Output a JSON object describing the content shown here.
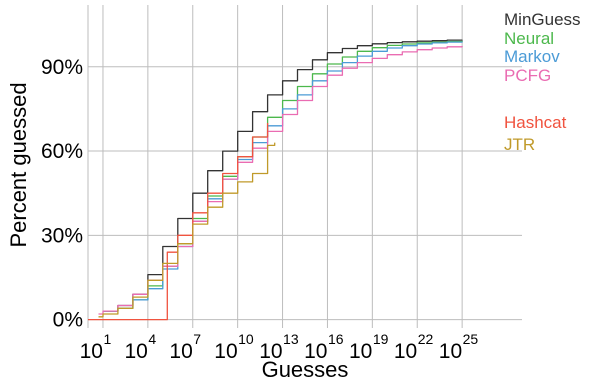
{
  "chart_data": {
    "type": "line",
    "title": "",
    "xlabel": "Guesses",
    "ylabel": "Percent guessed",
    "x_scale": "log10",
    "xlim": [
      1,
      1e+29
    ],
    "ylim": [
      -3,
      112
    ],
    "grid": true,
    "legend_position": "right",
    "x_ticks": [
      {
        "value": 10,
        "base": "10",
        "exp": "1"
      },
      {
        "value": 10000.0,
        "base": "10",
        "exp": "4"
      },
      {
        "value": 10000000.0,
        "base": "10",
        "exp": "7"
      },
      {
        "value": 10000000000.0,
        "base": "10",
        "exp": "10"
      },
      {
        "value": 10000000000000.0,
        "base": "10",
        "exp": "13"
      },
      {
        "value": 1e+16,
        "base": "10",
        "exp": "16"
      },
      {
        "value": 1e+19,
        "base": "10",
        "exp": "19"
      },
      {
        "value": 1e+22,
        "base": "10",
        "exp": "22"
      },
      {
        "value": 1e+25,
        "base": "10",
        "exp": "25"
      }
    ],
    "y_ticks": [
      {
        "value": 0,
        "label": "0%"
      },
      {
        "value": 30,
        "label": "30%"
      },
      {
        "value": 60,
        "label": "60%"
      },
      {
        "value": 90,
        "label": "90%"
      }
    ],
    "series": [
      {
        "name": "MinGuess",
        "color": "#333333",
        "x": [
          10.0,
          100.0,
          1000.0,
          10000.0,
          100000.0,
          1000000.0,
          10000000.0,
          100000000.0,
          1000000000.0,
          10000000000.0,
          100000000000.0,
          1000000000000.0,
          10000000000000.0,
          100000000000000.0,
          1000000000000000.0,
          1e+16,
          1e+17,
          1e+18,
          1e+19,
          1e+20,
          1e+21,
          1e+22,
          1e+23,
          1e+24,
          1e+25
        ],
        "y": [
          3,
          5,
          9,
          16,
          26,
          36,
          45,
          53,
          60,
          67,
          74,
          80,
          85,
          89,
          92.5,
          95,
          96.5,
          97.5,
          98.2,
          98.6,
          98.9,
          99.1,
          99.3,
          99.5,
          99.6
        ]
      },
      {
        "name": "Neural",
        "color": "#4cb84c",
        "x": [
          10.0,
          100.0,
          1000.0,
          10000.0,
          100000.0,
          1000000.0,
          10000000.0,
          100000000.0,
          1000000000.0,
          10000000000.0,
          100000000000.0,
          1000000000000.0,
          10000000000000.0,
          100000000000000.0,
          1000000000000000.0,
          1e+16,
          1e+17,
          1e+18,
          1e+19,
          1e+20,
          1e+21,
          1e+22,
          1e+23,
          1e+24,
          1e+25
        ],
        "y": [
          3,
          4,
          7,
          12,
          19,
          27,
          36,
          44,
          51,
          58,
          65,
          72,
          78,
          83,
          87.5,
          91,
          93.5,
          95.5,
          96.8,
          97.6,
          98.1,
          98.5,
          98.8,
          99,
          99.2
        ]
      },
      {
        "name": "Markov",
        "color": "#4b9bd6",
        "x": [
          10.0,
          100.0,
          1000.0,
          10000.0,
          100000.0,
          1000000.0,
          10000000.0,
          100000000.0,
          1000000000.0,
          10000000000.0,
          100000000000.0,
          1000000000000.0,
          10000000000000.0,
          100000000000000.0,
          1000000000000000.0,
          1e+16,
          1e+17,
          1e+18,
          1e+19,
          1e+20,
          1e+21,
          1e+22,
          1e+23,
          1e+24,
          1e+25
        ],
        "y": [
          3,
          4,
          7,
          11,
          18,
          26,
          35,
          43,
          50,
          57,
          63,
          69,
          75,
          80,
          85,
          88.5,
          91.5,
          93.8,
          95.5,
          96.7,
          97.5,
          98.1,
          98.5,
          98.8,
          99
        ]
      },
      {
        "name": "PCFG",
        "color": "#ea6cb2",
        "x": [
          5,
          10.0,
          100.0,
          1000.0,
          10000.0,
          100000.0,
          1000000.0,
          10000000.0,
          100000000.0,
          1000000000.0,
          10000000000.0,
          100000000000.0,
          1000000000000.0,
          10000000000000.0,
          100000000000000.0,
          1000000000000000.0,
          1e+16,
          1e+17,
          1e+18,
          1e+19,
          1e+20,
          1e+21,
          1e+22,
          1e+23,
          1e+24,
          1e+25
        ],
        "y": [
          2,
          3,
          5,
          9,
          14,
          19,
          26,
          35,
          42,
          50,
          56,
          61,
          67,
          73,
          78,
          83,
          87,
          89.5,
          91.5,
          93,
          94.3,
          95.3,
          96.1,
          96.7,
          97.1,
          97.4
        ]
      },
      {
        "name": "Hashcat",
        "color": "#f0533f",
        "x": [
          1,
          200000.0,
          200000.0,
          1000000.0,
          10000000.0,
          100000000.0,
          1000000000.0,
          10000000000.0,
          100000000000.0,
          1000000000000.0
        ],
        "y": [
          0,
          0,
          24,
          30,
          38,
          45,
          52,
          58,
          65,
          70
        ]
      },
      {
        "name": "JTR",
        "color": "#c09a2a",
        "x": [
          5,
          10.0,
          100.0,
          1000.0,
          10000.0,
          100000.0,
          1000000.0,
          10000000.0,
          100000000.0,
          1000000000.0,
          10000000000.0,
          100000000000.0,
          1000000000000.0,
          1000000000000.0,
          3000000000000.0
        ],
        "y": [
          1,
          2,
          4,
          8,
          14,
          20,
          27,
          34,
          40,
          45,
          49,
          52,
          55,
          62,
          63
        ]
      }
    ]
  }
}
